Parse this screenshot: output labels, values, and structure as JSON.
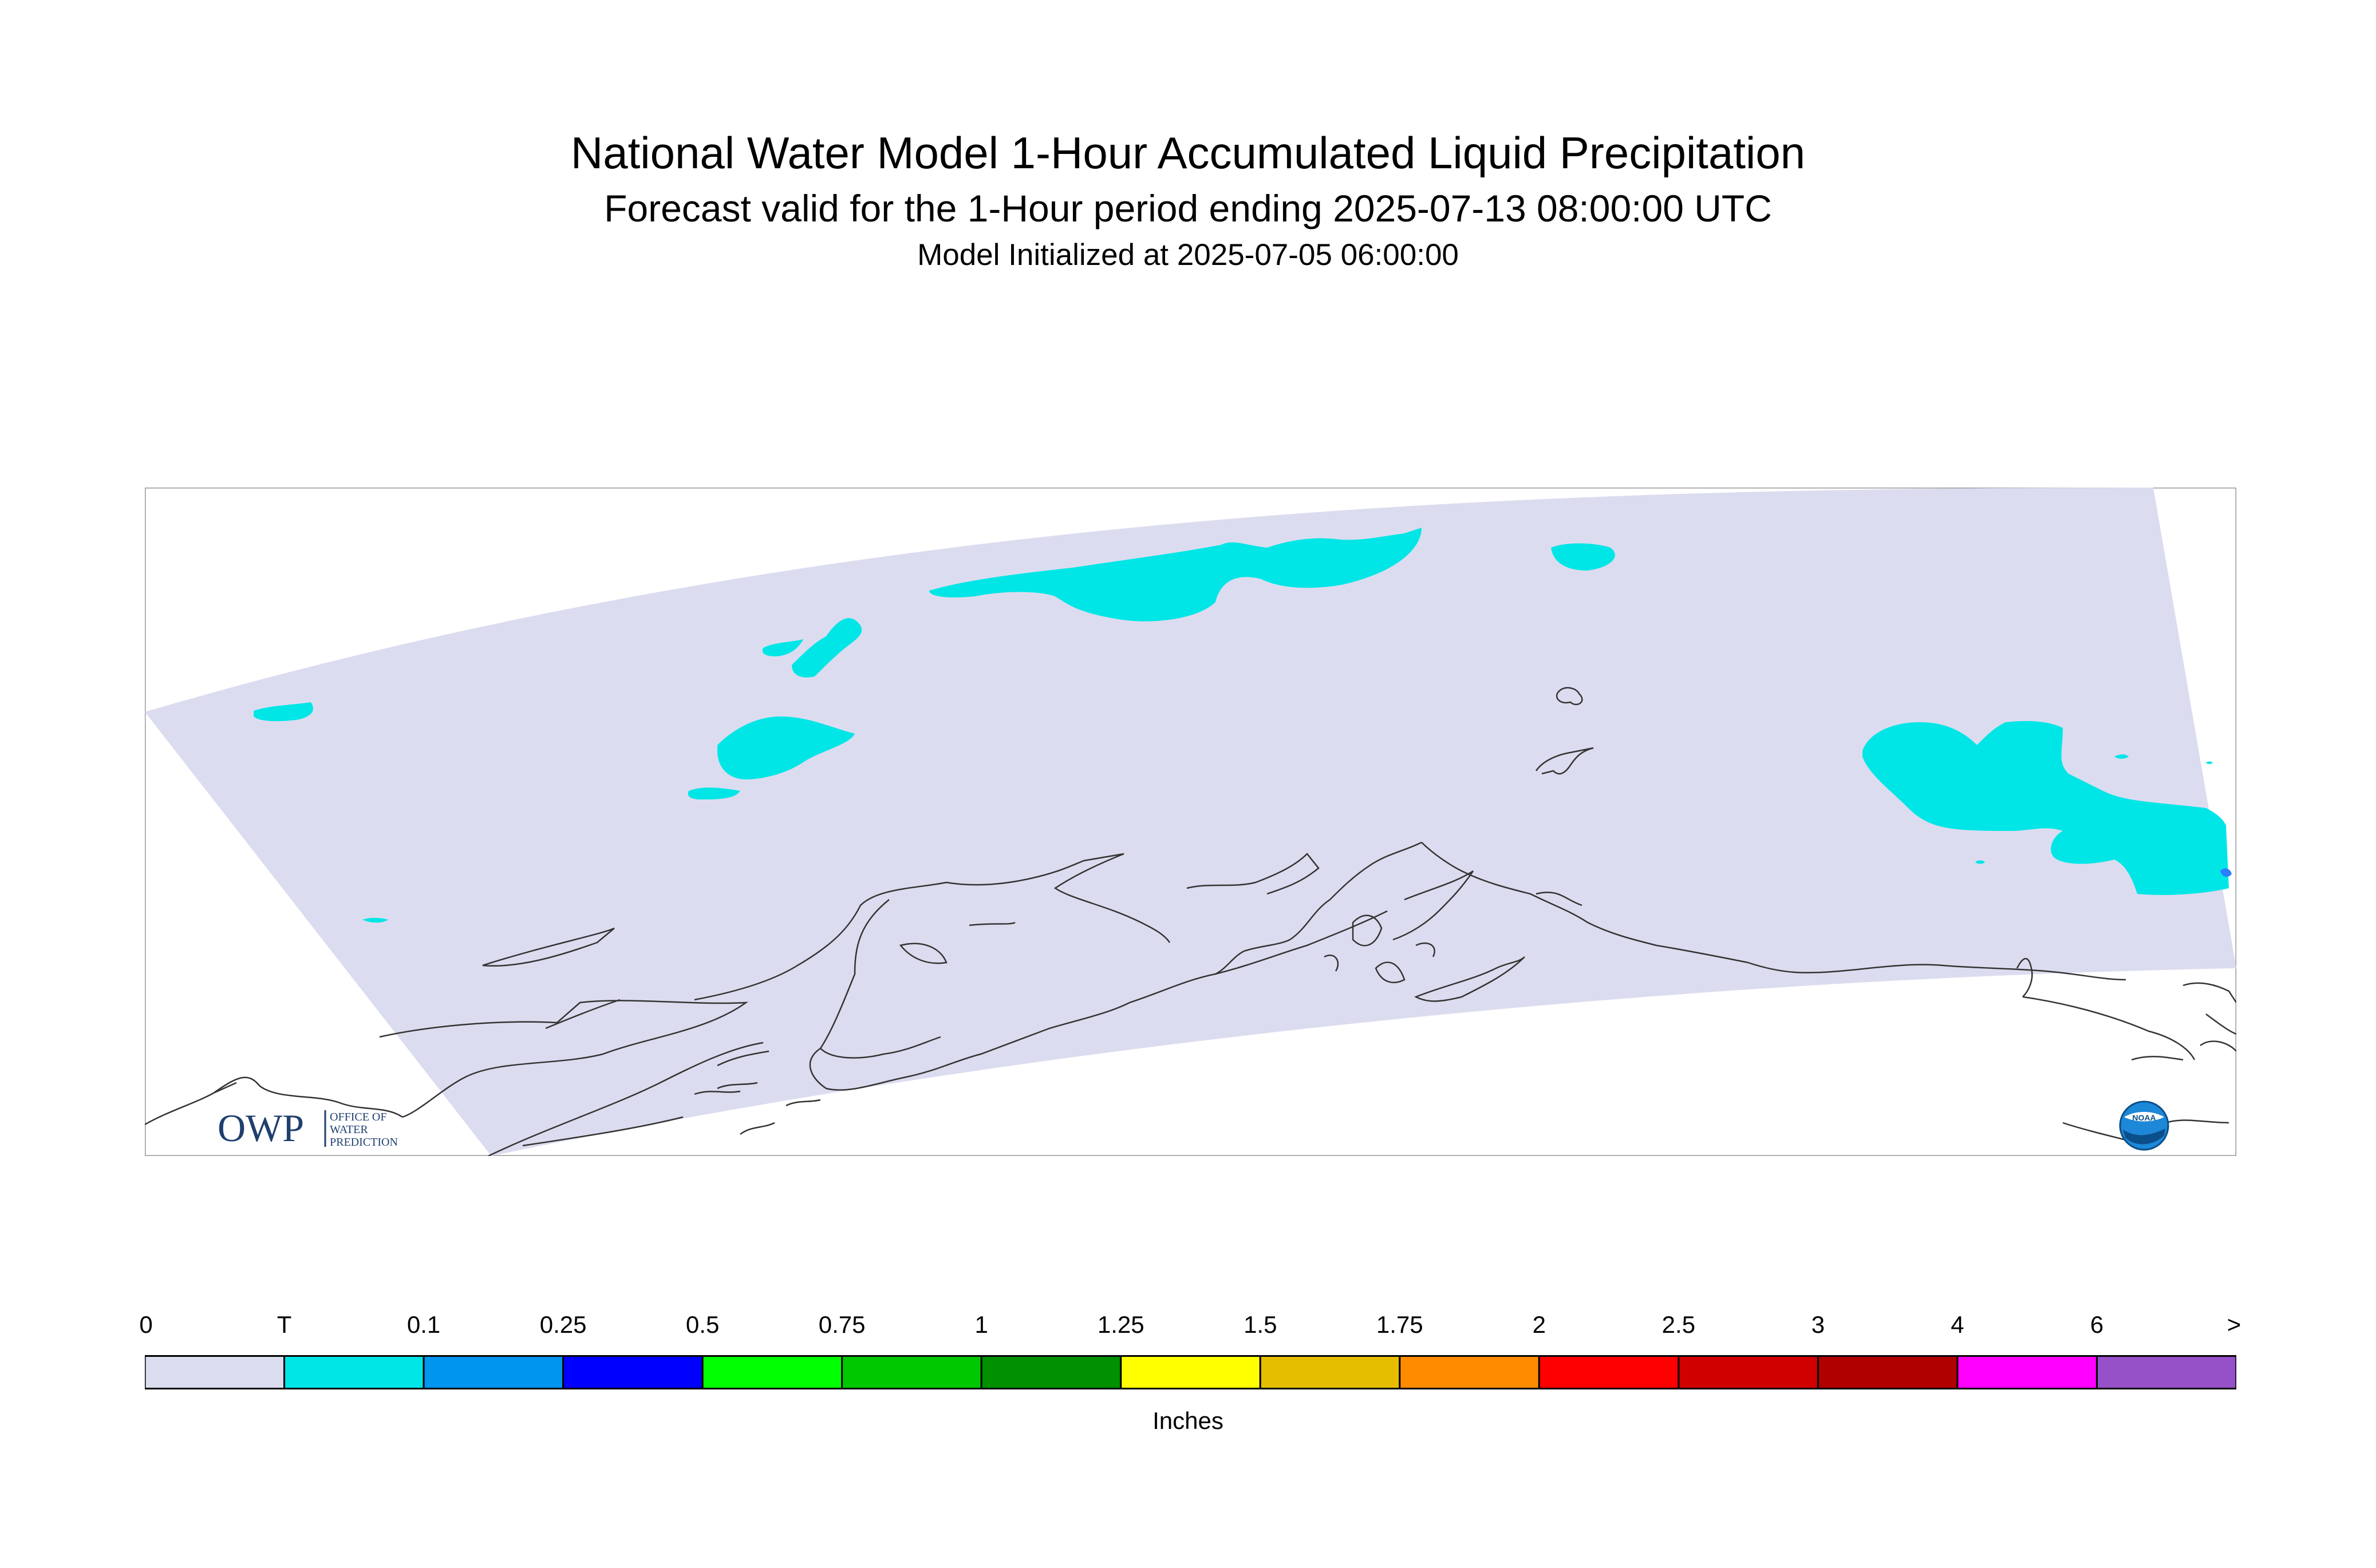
{
  "title": "National Water Model 1-Hour Accumulated Liquid Precipitation",
  "subtitle": "Forecast valid for the 1-Hour period ending 2025-07-13 08:00:00 UTC",
  "init_text": "Model Initialized at 2025-07-05 06:00:00",
  "legend": {
    "units": "Inches",
    "labels": [
      "0",
      "T",
      "0.1",
      "0.25",
      "0.5",
      "0.75",
      "1",
      "1.25",
      "1.5",
      "1.75",
      "2",
      "2.5",
      "3",
      "4",
      "6",
      ">"
    ],
    "colors": [
      "#dcdcf0",
      "#00e6e6",
      "#0096f0",
      "#0000ff",
      "#00ff00",
      "#00c800",
      "#009000",
      "#ffff00",
      "#e6be00",
      "#ff8c00",
      "#ff0000",
      "#d00000",
      "#b00000",
      "#ff00ff",
      "#9650c8"
    ]
  },
  "map": {
    "domain_fill": "#dcdcf0",
    "precip_fill": "#00e6e6",
    "heavier_fill": "#2a7fff",
    "coast_color": "#333333"
  },
  "logos": {
    "owp_mark": "OWP",
    "owp_text": [
      "OFFICE OF",
      "WATER",
      "PREDICTION"
    ],
    "noaa_text": "NOAA"
  }
}
